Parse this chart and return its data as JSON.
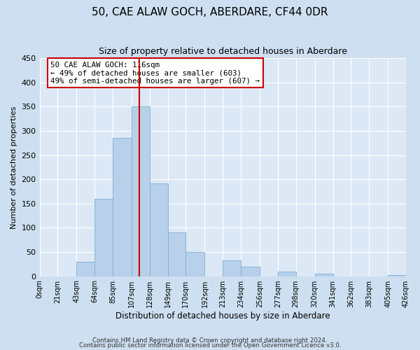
{
  "title": "50, CAE ALAW GOCH, ABERDARE, CF44 0DR",
  "subtitle": "Size of property relative to detached houses in Aberdare",
  "xlabel": "Distribution of detached houses by size in Aberdare",
  "ylabel": "Number of detached properties",
  "bin_edges": [
    0,
    21,
    43,
    64,
    85,
    107,
    128,
    149,
    170,
    192,
    213,
    234,
    256,
    277,
    298,
    320,
    341,
    362,
    383,
    405,
    426
  ],
  "bar_heights": [
    0,
    0,
    30,
    160,
    285,
    350,
    192,
    90,
    50,
    0,
    32,
    20,
    0,
    10,
    0,
    5,
    0,
    0,
    0,
    2
  ],
  "bar_color": "#b8d0ea",
  "bar_edge_color": "#7aafd4",
  "property_value": 116,
  "vline_color": "#cc0000",
  "annotation_text": "50 CAE ALAW GOCH: 116sqm\n← 49% of detached houses are smaller (603)\n49% of semi-detached houses are larger (607) →",
  "annotation_box_color": "#cc0000",
  "ylim": [
    0,
    450
  ],
  "yticks": [
    0,
    50,
    100,
    150,
    200,
    250,
    300,
    350,
    400,
    450
  ],
  "tick_labels": [
    "0sqm",
    "21sqm",
    "43sqm",
    "64sqm",
    "85sqm",
    "107sqm",
    "128sqm",
    "149sqm",
    "170sqm",
    "192sqm",
    "213sqm",
    "234sqm",
    "256sqm",
    "277sqm",
    "298sqm",
    "320sqm",
    "341sqm",
    "362sqm",
    "383sqm",
    "405sqm",
    "426sqm"
  ],
  "footnote1": "Contains HM Land Registry data © Crown copyright and database right 2024.",
  "footnote2": "Contains public sector information licensed under the Open Government Licence v3.0.",
  "bg_color": "#dce8f5",
  "plot_bg_color": "#dce8f5",
  "fig_bg_color": "#cddff0"
}
